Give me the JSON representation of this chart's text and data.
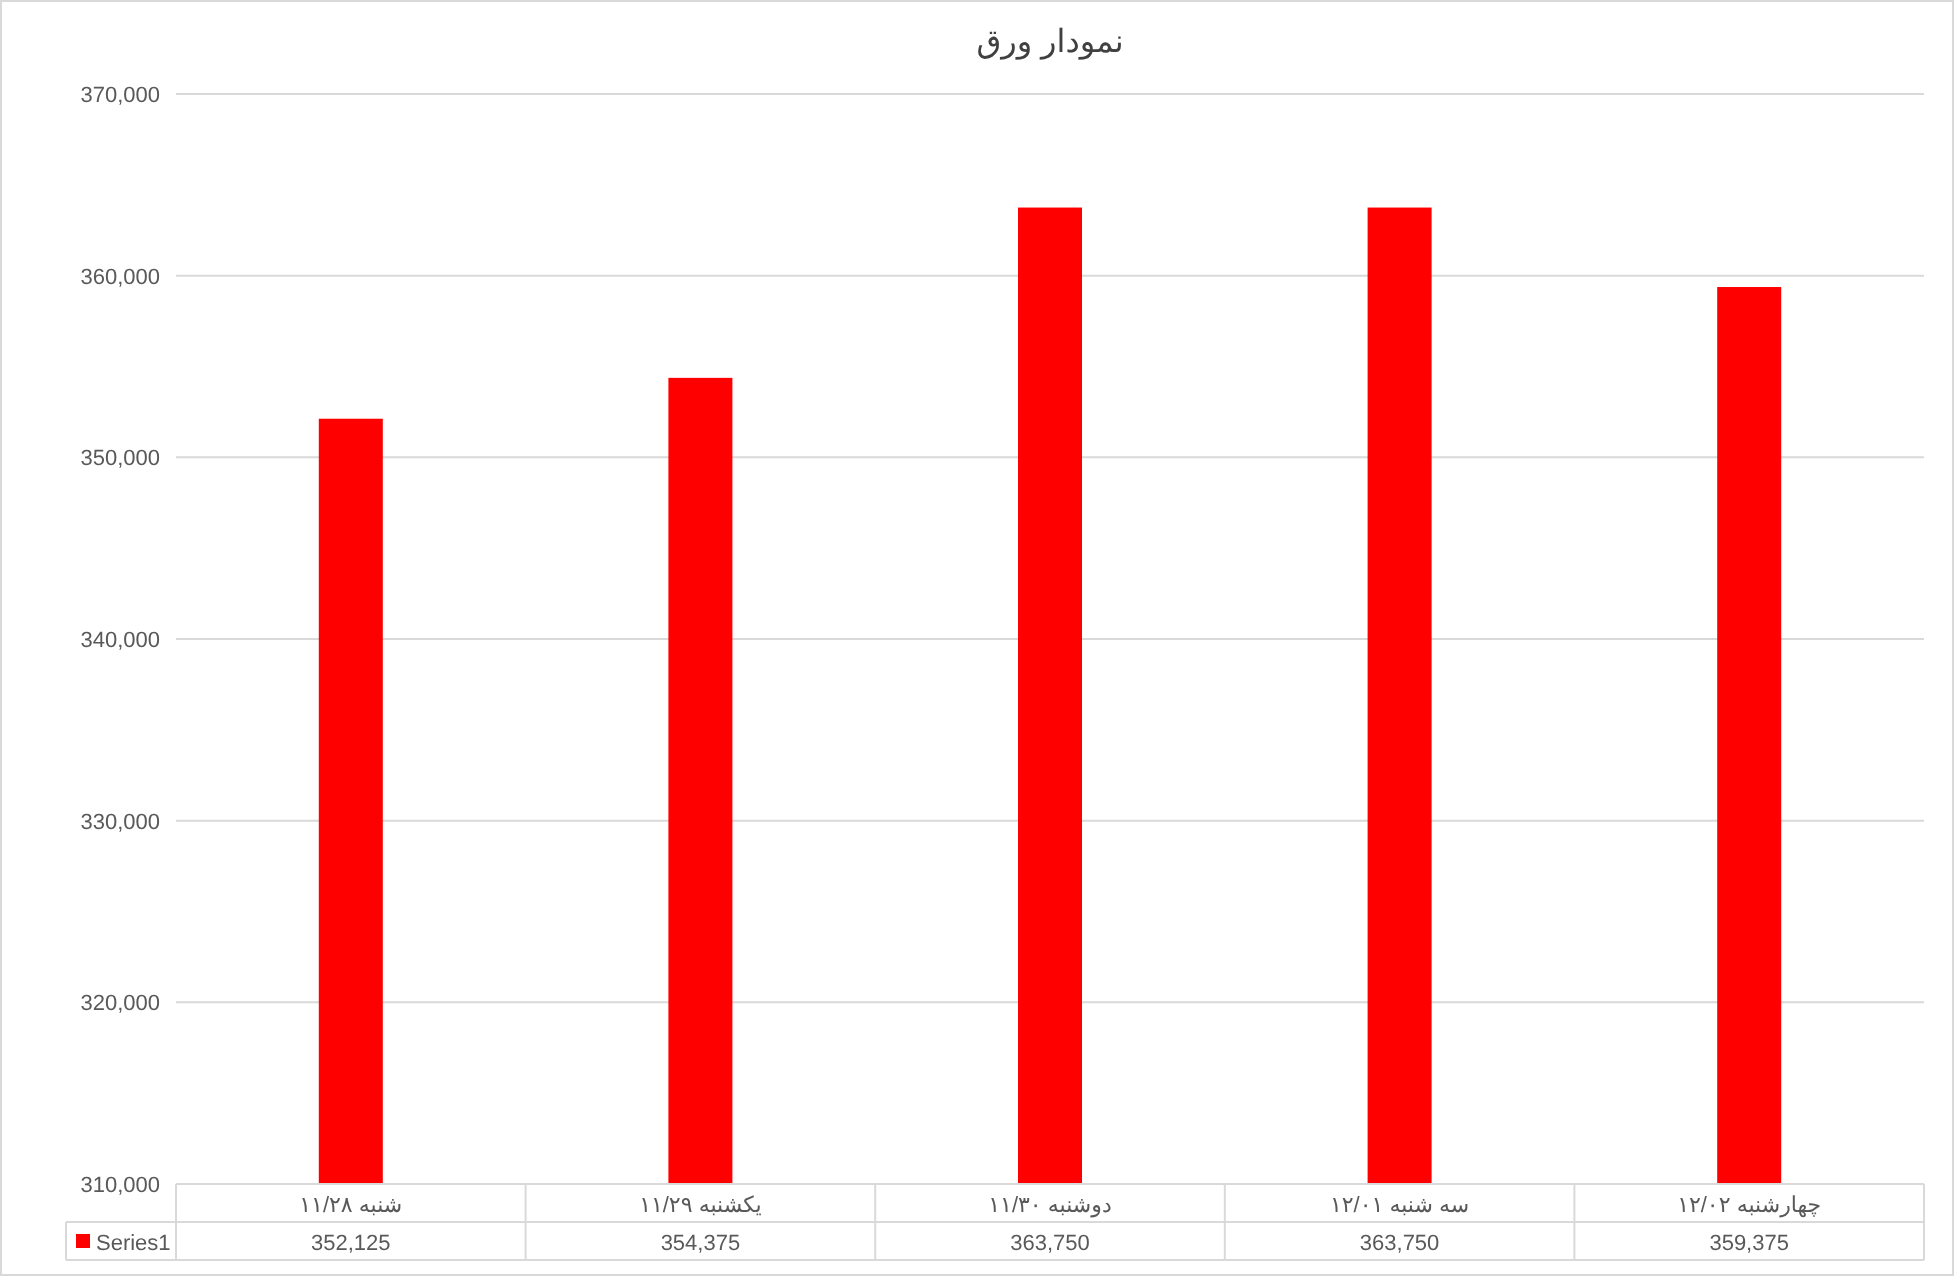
{
  "chart_data": {
    "type": "bar",
    "title": "نمودار ورق",
    "categories": [
      "شنبه ۱۱/۲۸",
      "یکشنبه ۱۱/۲۹",
      "دوشنبه ۱۱/۳۰",
      "سه شنبه ۱۲/۰۱",
      "چهارشنبه ۱۲/۰۲"
    ],
    "series": [
      {
        "name": "Series1",
        "color": "#ff0000",
        "values": [
          352125,
          354375,
          363750,
          363750,
          359375
        ],
        "value_labels": [
          "352,125",
          "354,375",
          "363,750",
          "363,750",
          "359,375"
        ]
      }
    ],
    "ylim": [
      310000,
      370000
    ],
    "yticks": [
      {
        "value": 310000,
        "label": "310,000"
      },
      {
        "value": 320000,
        "label": "320,000"
      },
      {
        "value": 330000,
        "label": "330,000"
      },
      {
        "value": 340000,
        "label": "340,000"
      },
      {
        "value": 350000,
        "label": "350,000"
      },
      {
        "value": 360000,
        "label": "360,000"
      },
      {
        "value": 370000,
        "label": "370,000"
      }
    ],
    "grid": "y",
    "legend": "bottom"
  }
}
